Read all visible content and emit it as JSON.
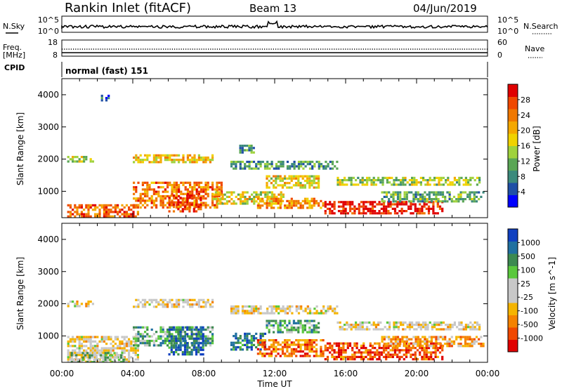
{
  "header": {
    "title": "Rankin Inlet (fitACF)",
    "beam": "Beam 13",
    "date": "04/Jun/2019"
  },
  "nsky_panel": {
    "left_label": "N.Sky",
    "right_label": "N.Search",
    "left_ticks": [
      "10^5",
      "10^0"
    ],
    "right_ticks": [
      "10^5",
      "10^0"
    ]
  },
  "freq_panel": {
    "left_label_1": "Freq.",
    "left_label_2": "[MHz]",
    "right_label": "Nave",
    "left_ticks": [
      "18",
      "8"
    ],
    "right_ticks": [
      "60",
      "0"
    ]
  },
  "cpid_panel": {
    "label": "CPID",
    "text": "normal (fast) 151"
  },
  "colors": {
    "power_scale": [
      "#0000ff",
      "#1f4fa6",
      "#3c8a7c",
      "#5aa655",
      "#9fd23c",
      "#f0d200",
      "#f5a800",
      "#f07800",
      "#f04800",
      "#e00000"
    ],
    "velocity_scale": [
      "#e00000",
      "#f04800",
      "#f58200",
      "#f5b400",
      "#c8c8c8",
      "#c8c8c8",
      "#5ac83c",
      "#3c8a50",
      "#2070a0",
      "#1040c0"
    ]
  },
  "chart_data": [
    {
      "type": "heatmap",
      "panel": "power",
      "xlabel": "Time UT",
      "ylabel": "Slant Range [km]",
      "xticks": [
        "00:00",
        "04:00",
        "08:00",
        "12:00",
        "16:00",
        "20:00",
        "00:00"
      ],
      "yticks": [
        "1000",
        "2000",
        "3000",
        "4000"
      ],
      "xlim": [
        0,
        24
      ],
      "ylim": [
        180,
        4500
      ],
      "colorbar": {
        "label": "Power [dB]",
        "ticks": [
          "4",
          "8",
          "12",
          "16",
          "20",
          "24",
          "28"
        ],
        "range": [
          0,
          32
        ]
      },
      "bands": [
        {
          "t0": 0.3,
          "t1": 4.3,
          "r0": 200,
          "r1": 600,
          "level": 0.8
        },
        {
          "t0": 4.0,
          "t1": 9.0,
          "r0": 500,
          "r1": 1300,
          "level": 0.75
        },
        {
          "t0": 6.0,
          "t1": 7.8,
          "r0": 400,
          "r1": 900,
          "level": 0.9
        },
        {
          "t0": 0.3,
          "t1": 1.8,
          "r0": 1900,
          "r1": 2100,
          "level": 0.45
        },
        {
          "t0": 4.0,
          "t1": 8.5,
          "r0": 1900,
          "r1": 2150,
          "level": 0.6
        },
        {
          "t0": 8.5,
          "t1": 12.5,
          "r0": 600,
          "r1": 1000,
          "level": 0.55
        },
        {
          "t0": 11.5,
          "t1": 14.5,
          "r0": 1100,
          "r1": 1500,
          "level": 0.55
        },
        {
          "t0": 11.0,
          "t1": 14.8,
          "r0": 500,
          "r1": 800,
          "level": 0.7
        },
        {
          "t0": 14.8,
          "t1": 21.5,
          "r0": 300,
          "r1": 700,
          "level": 0.95
        },
        {
          "t0": 15.5,
          "t1": 23.5,
          "r0": 1200,
          "r1": 1450,
          "level": 0.45
        },
        {
          "t0": 18.0,
          "t1": 23.8,
          "r0": 700,
          "r1": 1000,
          "level": 0.35
        },
        {
          "t0": 2.2,
          "t1": 2.8,
          "r0": 3800,
          "r1": 4000,
          "level": 0.25
        },
        {
          "t0": 10.0,
          "t1": 10.8,
          "r0": 2200,
          "r1": 2450,
          "level": 0.3
        },
        {
          "t0": 9.5,
          "t1": 15.5,
          "r0": 1700,
          "r1": 1950,
          "level": 0.3
        }
      ]
    },
    {
      "type": "heatmap",
      "panel": "velocity",
      "xlabel": "Time UT",
      "ylabel": "Slant Range [km]",
      "xticks": [
        "00:00",
        "04:00",
        "08:00",
        "12:00",
        "16:00",
        "20:00",
        "00:00"
      ],
      "yticks": [
        "1000",
        "2000",
        "3000",
        "4000"
      ],
      "xlim": [
        0,
        24
      ],
      "ylim": [
        180,
        4500
      ],
      "colorbar": {
        "label": "Velocity [m s^-1]",
        "ticks": [
          "1000",
          "500",
          "100",
          "25",
          "-25",
          "-100",
          "-500",
          "-1000"
        ]
      },
      "bands": [
        {
          "t0": 0.3,
          "t1": 4.3,
          "r0": 200,
          "r1": 1000,
          "level": 0.45
        },
        {
          "t0": 0.5,
          "t1": 3.5,
          "r0": 200,
          "r1": 500,
          "level": 0.6
        },
        {
          "t0": 4.0,
          "t1": 8.5,
          "r0": 700,
          "r1": 1300,
          "level": 0.7
        },
        {
          "t0": 6.0,
          "t1": 8.0,
          "r0": 400,
          "r1": 1300,
          "level": 0.85
        },
        {
          "t0": 0.3,
          "t1": 1.8,
          "r0": 1900,
          "r1": 2100,
          "level": 0.45
        },
        {
          "t0": 4.0,
          "t1": 8.5,
          "r0": 1900,
          "r1": 2150,
          "level": 0.45
        },
        {
          "t0": 9.5,
          "t1": 11.5,
          "r0": 600,
          "r1": 1100,
          "level": 0.8
        },
        {
          "t0": 11.0,
          "t1": 14.8,
          "r0": 400,
          "r1": 900,
          "level": 0.2
        },
        {
          "t0": 11.5,
          "t1": 14.5,
          "r0": 1100,
          "r1": 1500,
          "level": 0.7
        },
        {
          "t0": 14.8,
          "t1": 21.5,
          "r0": 300,
          "r1": 800,
          "level": 0.15
        },
        {
          "t0": 15.5,
          "t1": 23.5,
          "r0": 1200,
          "r1": 1450,
          "level": 0.45
        },
        {
          "t0": 18.0,
          "t1": 23.8,
          "r0": 700,
          "r1": 1000,
          "level": 0.3
        },
        {
          "t0": 9.5,
          "t1": 15.5,
          "r0": 1700,
          "r1": 1950,
          "level": 0.45
        }
      ]
    }
  ]
}
